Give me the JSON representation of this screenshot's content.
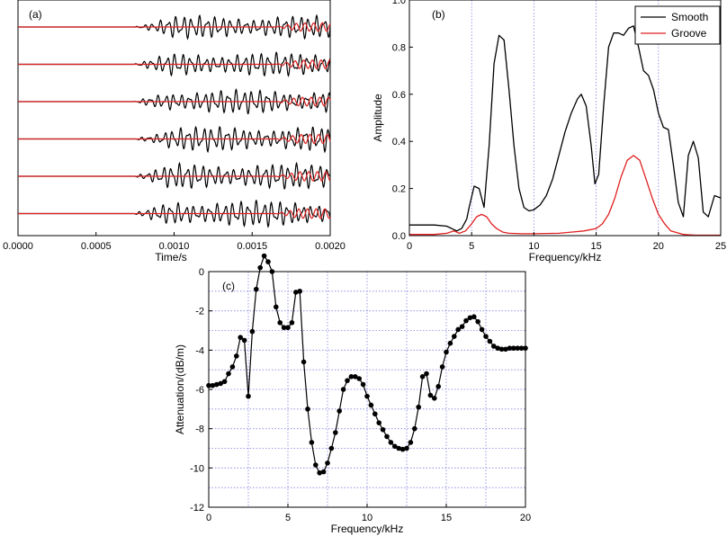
{
  "chart_data": [
    {
      "panel": "(a)",
      "type": "line",
      "xlabel": "Time/s",
      "ylabel": "",
      "xlim": [
        0.0,
        0.002
      ],
      "x_ticks": [
        "0.0000",
        "0.0005",
        "0.0010",
        "0.0015",
        "0.0020"
      ],
      "grid": false,
      "trace_count": 6,
      "series": [
        {
          "color": "#000000",
          "onset": 0.00074,
          "relative_amplitude": 1.0
        },
        {
          "color": "#e02020",
          "onset": 0.00165,
          "relative_amplitude": 0.35
        }
      ]
    },
    {
      "panel": "(b)",
      "type": "line",
      "xlabel": "Frequency/kHz",
      "ylabel": "Amplitude",
      "xlim": [
        0,
        25
      ],
      "ylim": [
        0,
        1.0
      ],
      "x_ticks": [
        "0",
        "5",
        "10",
        "15",
        "20",
        "25"
      ],
      "y_ticks": [
        "0.0",
        "0.2",
        "0.4",
        "0.6",
        "0.8",
        "1.0"
      ],
      "grid": "vertical dotted",
      "legend_position": "top-right",
      "series": [
        {
          "name": "Smooth",
          "color": "#000000",
          "x": [
            0,
            2,
            3,
            3.8,
            4.2,
            4.6,
            4.8,
            5.2,
            5.6,
            6.0,
            6.4,
            6.8,
            7.2,
            7.6,
            8.0,
            8.4,
            8.8,
            9.2,
            9.6,
            10.0,
            10.5,
            11.0,
            11.5,
            12.0,
            12.5,
            13.0,
            13.5,
            13.8,
            14.2,
            14.6,
            14.9,
            15.2,
            15.6,
            16.0,
            16.4,
            16.8,
            17.2,
            17.6,
            18.0,
            18.4,
            18.8,
            19.2,
            19.6,
            20.0,
            20.4,
            20.8,
            21.2,
            21.6,
            22.0,
            22.4,
            22.8,
            23.2,
            23.6,
            24.0,
            24.5,
            25
          ],
          "y": [
            0.045,
            0.045,
            0.04,
            0.02,
            0.03,
            0.07,
            0.12,
            0.21,
            0.2,
            0.12,
            0.38,
            0.73,
            0.85,
            0.83,
            0.62,
            0.38,
            0.2,
            0.12,
            0.105,
            0.11,
            0.13,
            0.17,
            0.24,
            0.34,
            0.44,
            0.52,
            0.58,
            0.6,
            0.55,
            0.38,
            0.22,
            0.26,
            0.55,
            0.8,
            0.86,
            0.86,
            0.85,
            0.88,
            0.89,
            0.8,
            0.7,
            0.68,
            0.62,
            0.52,
            0.46,
            0.45,
            0.3,
            0.14,
            0.08,
            0.34,
            0.4,
            0.33,
            0.1,
            0.08,
            0.17,
            0.16
          ]
        },
        {
          "name": "Groove",
          "color": "#e02020",
          "x": [
            0,
            2,
            3,
            3.6,
            4.0,
            4.5,
            5.0,
            5.4,
            5.8,
            6.2,
            6.6,
            7.0,
            7.5,
            8.0,
            9.0,
            10.0,
            12.0,
            14.0,
            15.0,
            15.5,
            16.0,
            16.5,
            17.0,
            17.5,
            18.0,
            18.5,
            19.0,
            19.5,
            20.0,
            20.5,
            21.0,
            22.0,
            23.0,
            25.0
          ],
          "y": [
            0.005,
            0.005,
            0.01,
            0.02,
            0.01,
            0.02,
            0.05,
            0.08,
            0.09,
            0.08,
            0.05,
            0.03,
            0.015,
            0.01,
            0.008,
            0.008,
            0.01,
            0.02,
            0.03,
            0.05,
            0.09,
            0.16,
            0.25,
            0.32,
            0.34,
            0.32,
            0.24,
            0.16,
            0.09,
            0.05,
            0.02,
            0.005,
            0.002,
            0.002
          ]
        }
      ]
    },
    {
      "panel": "(c)",
      "type": "line",
      "marker": "circle",
      "xlabel": "Frequency/kHz",
      "ylabel": "Attenuation/(dB/m)",
      "xlim": [
        0,
        20
      ],
      "ylim": [
        -12,
        0
      ],
      "x_ticks": [
        "0",
        "5",
        "10",
        "15",
        "20"
      ],
      "y_ticks": [
        "0",
        "-2",
        "-4",
        "-6",
        "-8",
        "-10",
        "-12"
      ],
      "grid": "dotted",
      "series": [
        {
          "color": "#000000",
          "x": [
            0.0,
            0.25,
            0.5,
            0.75,
            1.0,
            1.25,
            1.5,
            1.75,
            2.0,
            2.25,
            2.5,
            2.75,
            3.0,
            3.25,
            3.5,
            3.75,
            4.0,
            4.25,
            4.5,
            4.75,
            5.0,
            5.25,
            5.5,
            5.75,
            6.0,
            6.25,
            6.5,
            6.75,
            7.0,
            7.25,
            7.5,
            7.75,
            8.0,
            8.25,
            8.5,
            8.75,
            9.0,
            9.25,
            9.5,
            9.75,
            10.0,
            10.25,
            10.5,
            10.75,
            11.0,
            11.25,
            11.5,
            11.75,
            12.0,
            12.25,
            12.5,
            12.75,
            13.0,
            13.25,
            13.5,
            13.75,
            14.0,
            14.25,
            14.5,
            14.75,
            15.0,
            15.25,
            15.5,
            15.75,
            16.0,
            16.25,
            16.5,
            16.75,
            17.0,
            17.25,
            17.5,
            17.75,
            18.0,
            18.25,
            18.5,
            18.75,
            19.0,
            19.25,
            19.5,
            19.75,
            20.0
          ],
          "y": [
            -5.8,
            -5.8,
            -5.75,
            -5.7,
            -5.6,
            -5.2,
            -4.85,
            -4.3,
            -3.35,
            -3.5,
            -6.35,
            -3.05,
            -0.9,
            0.2,
            0.8,
            0.5,
            0.0,
            -1.8,
            -2.6,
            -2.85,
            -2.85,
            -2.6,
            -1.05,
            -1.0,
            -4.6,
            -7.0,
            -8.7,
            -9.85,
            -10.25,
            -10.2,
            -9.75,
            -9.0,
            -8.2,
            -7.1,
            -6.0,
            -5.55,
            -5.35,
            -5.35,
            -5.45,
            -5.75,
            -6.35,
            -6.8,
            -7.25,
            -7.7,
            -8.05,
            -8.4,
            -8.7,
            -8.9,
            -9.0,
            -9.05,
            -9.0,
            -8.7,
            -8.0,
            -6.9,
            -5.35,
            -5.2,
            -6.3,
            -6.45,
            -5.85,
            -4.85,
            -4.1,
            -3.65,
            -3.3,
            -2.95,
            -2.8,
            -2.5,
            -2.35,
            -2.3,
            -2.55,
            -2.95,
            -3.3,
            -3.55,
            -3.8,
            -3.9,
            -3.95,
            -3.95,
            -3.9,
            -3.9,
            -3.9,
            -3.9,
            -3.9
          ]
        }
      ]
    }
  ],
  "legend": {
    "smooth_label": "Smooth",
    "groove_label": "Groove"
  }
}
